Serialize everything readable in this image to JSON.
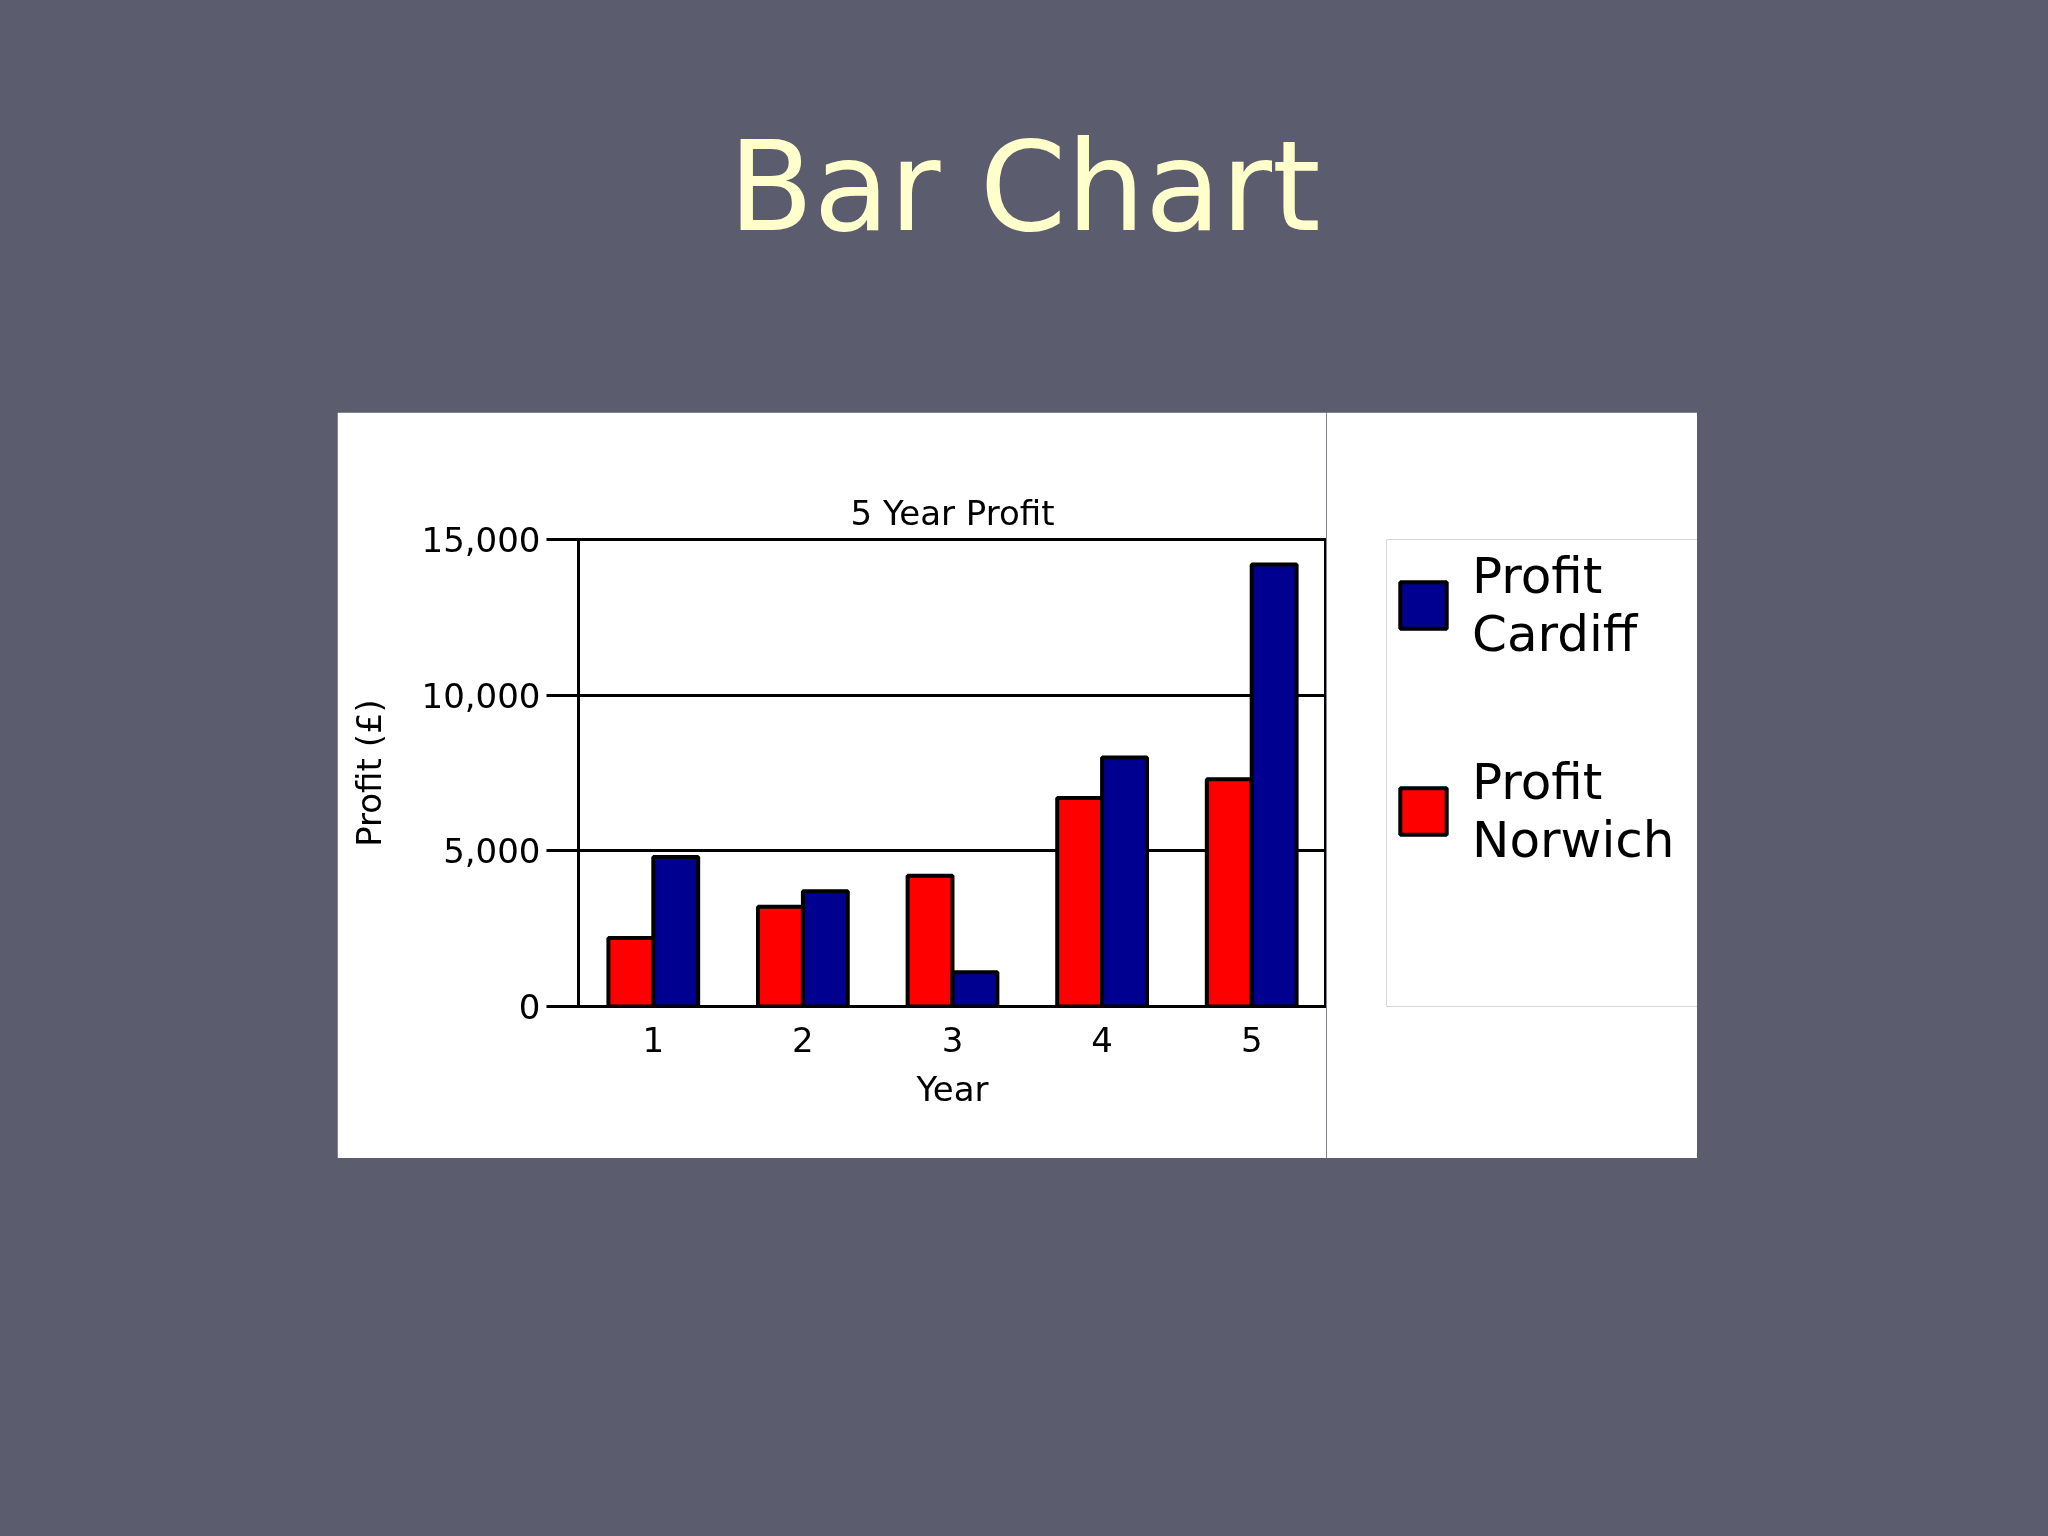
{
  "chart_data": {
    "type": "bar",
    "title": "Bar Chart",
    "subtitle": "5 Year Profit",
    "xlabel": "Year",
    "ylabel": "Profit (£)",
    "categories": [
      "1",
      "2",
      "3",
      "4",
      "5"
    ],
    "series": [
      {
        "name": "Profit Norwich",
        "color": "#ff0000",
        "values": [
          2200,
          3200,
          4200,
          6700,
          7300
        ]
      },
      {
        "name": "Profit Cardiff",
        "color": "#000090",
        "values": [
          4800,
          3700,
          1100,
          8000,
          14200
        ]
      }
    ],
    "ylim": [
      0,
      15000
    ],
    "yticks": [
      0,
      {
        "value": 5000,
        "label": "5,000"
      },
      {
        "value": 10000,
        "label": "10,000"
      },
      {
        "value": 15000,
        "label": "15,000"
      }
    ],
    "grid": "y",
    "legend": "right"
  }
}
